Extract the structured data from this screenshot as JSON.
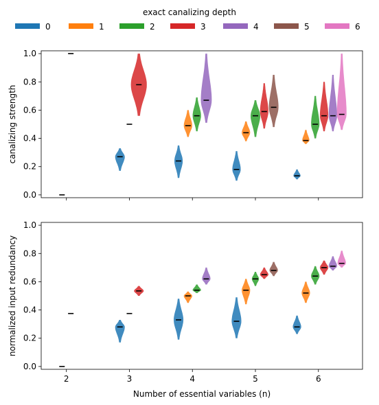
{
  "chart_data": [
    {
      "type": "violin",
      "ylabel": "canalizing strength",
      "xlabel": "",
      "x_ticks": [
        2,
        3,
        4,
        5,
        6
      ],
      "x_tick_labels": [],
      "ylim": [
        -0.02,
        1.02
      ],
      "y_ticks": [
        0.0,
        0.2,
        0.4,
        0.6,
        0.8,
        1.0
      ],
      "y_tick_labels": [
        "0.0",
        "0.2",
        "0.4",
        "0.6",
        "0.8",
        "1.0"
      ],
      "groups": [
        {
          "n": 2,
          "depth": 0,
          "x": 1.93,
          "min": 0.0,
          "max": 0.0,
          "median": 0.0,
          "width": 0
        },
        {
          "n": 2,
          "depth": 1,
          "x": 2.07,
          "min": 1.0,
          "max": 1.0,
          "median": 1.0,
          "width": 0
        },
        {
          "n": 3,
          "depth": 0,
          "x": 2.85,
          "min": 0.17,
          "max": 0.33,
          "median": 0.27,
          "width": 0.07
        },
        {
          "n": 3,
          "depth": 1,
          "x": 3.0,
          "min": 0.5,
          "max": 0.5,
          "median": 0.5,
          "width": 0
        },
        {
          "n": 3,
          "depth": 3,
          "x": 3.15,
          "min": 0.56,
          "max": 1.0,
          "median": 0.78,
          "width": 0.12
        },
        {
          "n": 4,
          "depth": 0,
          "x": 3.78,
          "min": 0.12,
          "max": 0.35,
          "median": 0.24,
          "width": 0.06
        },
        {
          "n": 4,
          "depth": 1,
          "x": 3.93,
          "min": 0.41,
          "max": 0.6,
          "median": 0.49,
          "width": 0.06
        },
        {
          "n": 4,
          "depth": 2,
          "x": 4.07,
          "min": 0.45,
          "max": 0.69,
          "median": 0.56,
          "width": 0.06
        },
        {
          "n": 4,
          "depth": 4,
          "x": 4.22,
          "min": 0.51,
          "max": 1.0,
          "median": 0.67,
          "width": 0.08
        },
        {
          "n": 5,
          "depth": 0,
          "x": 4.7,
          "min": 0.1,
          "max": 0.31,
          "median": 0.18,
          "width": 0.06
        },
        {
          "n": 5,
          "depth": 1,
          "x": 4.85,
          "min": 0.38,
          "max": 0.52,
          "median": 0.44,
          "width": 0.06
        },
        {
          "n": 5,
          "depth": 2,
          "x": 5.0,
          "min": 0.41,
          "max": 0.67,
          "median": 0.56,
          "width": 0.07
        },
        {
          "n": 5,
          "depth": 3,
          "x": 5.14,
          "min": 0.47,
          "max": 0.79,
          "median": 0.59,
          "width": 0.06
        },
        {
          "n": 5,
          "depth": 5,
          "x": 5.29,
          "min": 0.48,
          "max": 0.85,
          "median": 0.62,
          "width": 0.07
        },
        {
          "n": 6,
          "depth": 0,
          "x": 5.66,
          "min": 0.11,
          "max": 0.18,
          "median": 0.135,
          "width": 0.05
        },
        {
          "n": 6,
          "depth": 1,
          "x": 5.8,
          "min": 0.36,
          "max": 0.46,
          "median": 0.385,
          "width": 0.05
        },
        {
          "n": 6,
          "depth": 2,
          "x": 5.95,
          "min": 0.4,
          "max": 0.7,
          "median": 0.5,
          "width": 0.06
        },
        {
          "n": 6,
          "depth": 3,
          "x": 6.09,
          "min": 0.45,
          "max": 0.8,
          "median": 0.56,
          "width": 0.06
        },
        {
          "n": 6,
          "depth": 4,
          "x": 6.23,
          "min": 0.45,
          "max": 0.85,
          "median": 0.56,
          "width": 0.06
        },
        {
          "n": 6,
          "depth": 6,
          "x": 6.37,
          "min": 0.46,
          "max": 1.0,
          "median": 0.57,
          "width": 0.07
        }
      ]
    },
    {
      "type": "violin",
      "ylabel": "normalized input redundancy",
      "xlabel": "Number of essential variables (n)",
      "x_ticks": [
        2,
        3,
        4,
        5,
        6
      ],
      "x_tick_labels": [
        "2",
        "3",
        "4",
        "5",
        "6"
      ],
      "ylim": [
        -0.02,
        1.02
      ],
      "y_ticks": [
        0.0,
        0.2,
        0.4,
        0.6,
        0.8,
        1.0
      ],
      "y_tick_labels": [
        "0.0",
        "0.2",
        "0.4",
        "0.6",
        "0.8",
        "1.0"
      ],
      "groups": [
        {
          "n": 2,
          "depth": 0,
          "x": 1.93,
          "min": 0.0,
          "max": 0.0,
          "median": 0.0,
          "width": 0
        },
        {
          "n": 2,
          "depth": 1,
          "x": 2.07,
          "min": 0.375,
          "max": 0.375,
          "median": 0.375,
          "width": 0
        },
        {
          "n": 3,
          "depth": 0,
          "x": 2.85,
          "min": 0.17,
          "max": 0.33,
          "median": 0.28,
          "width": 0.07
        },
        {
          "n": 3,
          "depth": 1,
          "x": 3.0,
          "min": 0.375,
          "max": 0.375,
          "median": 0.375,
          "width": 0
        },
        {
          "n": 3,
          "depth": 3,
          "x": 3.15,
          "min": 0.5,
          "max": 0.57,
          "median": 0.535,
          "width": 0.07
        },
        {
          "n": 4,
          "depth": 0,
          "x": 3.78,
          "min": 0.19,
          "max": 0.48,
          "median": 0.33,
          "width": 0.07
        },
        {
          "n": 4,
          "depth": 1,
          "x": 3.93,
          "min": 0.45,
          "max": 0.53,
          "median": 0.5,
          "width": 0.06
        },
        {
          "n": 4,
          "depth": 2,
          "x": 4.07,
          "min": 0.52,
          "max": 0.58,
          "median": 0.54,
          "width": 0.06
        },
        {
          "n": 4,
          "depth": 4,
          "x": 4.22,
          "min": 0.58,
          "max": 0.7,
          "median": 0.62,
          "width": 0.06
        },
        {
          "n": 5,
          "depth": 0,
          "x": 4.7,
          "min": 0.2,
          "max": 0.49,
          "median": 0.32,
          "width": 0.07
        },
        {
          "n": 5,
          "depth": 1,
          "x": 4.85,
          "min": 0.44,
          "max": 0.62,
          "median": 0.54,
          "width": 0.06
        },
        {
          "n": 5,
          "depth": 2,
          "x": 5.0,
          "min": 0.57,
          "max": 0.67,
          "median": 0.62,
          "width": 0.05
        },
        {
          "n": 5,
          "depth": 3,
          "x": 5.14,
          "min": 0.62,
          "max": 0.7,
          "median": 0.65,
          "width": 0.06
        },
        {
          "n": 5,
          "depth": 5,
          "x": 5.29,
          "min": 0.64,
          "max": 0.74,
          "median": 0.68,
          "width": 0.06
        },
        {
          "n": 6,
          "depth": 0,
          "x": 5.66,
          "min": 0.23,
          "max": 0.36,
          "median": 0.28,
          "width": 0.06
        },
        {
          "n": 6,
          "depth": 1,
          "x": 5.8,
          "min": 0.45,
          "max": 0.6,
          "median": 0.52,
          "width": 0.06
        },
        {
          "n": 6,
          "depth": 2,
          "x": 5.95,
          "min": 0.58,
          "max": 0.71,
          "median": 0.64,
          "width": 0.06
        },
        {
          "n": 6,
          "depth": 3,
          "x": 6.09,
          "min": 0.65,
          "max": 0.75,
          "median": 0.7,
          "width": 0.06
        },
        {
          "n": 6,
          "depth": 4,
          "x": 6.23,
          "min": 0.68,
          "max": 0.78,
          "median": 0.71,
          "width": 0.06
        },
        {
          "n": 6,
          "depth": 6,
          "x": 6.37,
          "min": 0.7,
          "max": 0.82,
          "median": 0.73,
          "width": 0.06
        }
      ]
    }
  ],
  "legend": {
    "title": "exact canalizing depth",
    "placement": "top-center",
    "entries": [
      {
        "label": "0",
        "color": "#1f77b4"
      },
      {
        "label": "1",
        "color": "#ff7f0e"
      },
      {
        "label": "2",
        "color": "#2ca02c"
      },
      {
        "label": "3",
        "color": "#d62728"
      },
      {
        "label": "4",
        "color": "#9467bd"
      },
      {
        "label": "5",
        "color": "#8c564b"
      },
      {
        "label": "6",
        "color": "#e377c2"
      }
    ]
  }
}
